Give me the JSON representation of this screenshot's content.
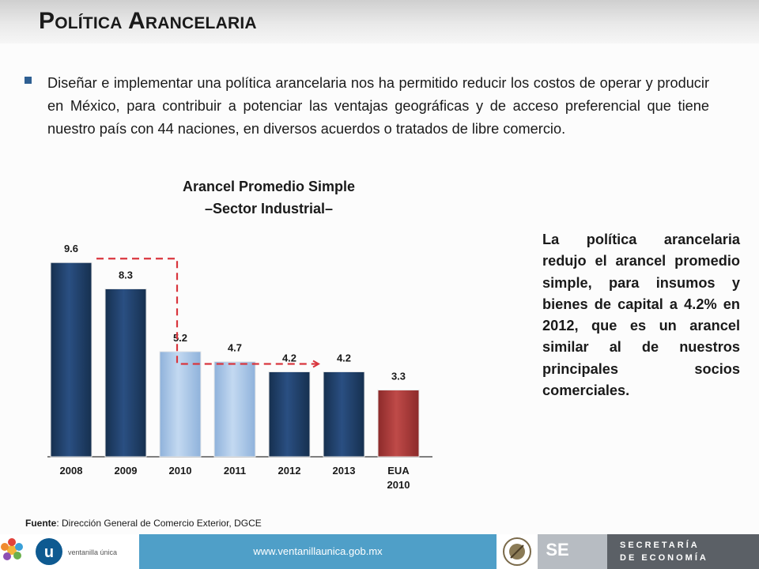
{
  "header": {
    "title": "Política Arancelaria"
  },
  "intro": {
    "text": "Diseñar e implementar una política arancelaria nos ha permitido reducir los costos de operar y producir en México, para contribuir a potenciar las ventajas geográficas y de acceso preferencial que tiene nuestro país con 44 naciones, en diversos acuerdos o tratados de libre comercio."
  },
  "chart_data": {
    "type": "bar",
    "title": "Arancel Promedio Simple",
    "subtitle": "–Sector Industrial–",
    "categories": [
      "2008",
      "2009",
      "2010",
      "2011",
      "2012",
      "2013",
      "EUA 2010"
    ],
    "values": [
      9.6,
      8.3,
      5.2,
      4.7,
      4.2,
      4.2,
      3.3
    ],
    "value_labels": [
      "9.6",
      "8.3",
      "5.2",
      "4.7",
      "4.2",
      "4.2",
      "3.3"
    ],
    "bar_colors": [
      "#1f3c66",
      "#1f3c66",
      "#a9c6e8",
      "#a9c6e8",
      "#1f3c66",
      "#1f3c66",
      "#a33a3a"
    ],
    "ylim": [
      0,
      10
    ],
    "grid": false,
    "legend": "none",
    "annotation": "dashed red step arrow from 2008 level down to 2012 level"
  },
  "side_note": {
    "text": "La política arancelaria redujo el arancel promedio simple, para insumos y bienes de capital a 4.2% en 2012, que es un arancel similar al de nuestros principales socios comerciales."
  },
  "source": {
    "label": "Fuente",
    "text": ": Dirección General de Comercio Exterior, DGCE"
  },
  "footer": {
    "url": "www.ventanillaunica.gob.mx",
    "brand_small": "ventanilla única",
    "se": "SE",
    "secretaria_line1": "SECRETARÍA",
    "secretaria_line2": "DE ECONOMÍA"
  },
  "colors": {
    "dark_bar": "#1f3c66",
    "light_bar": "#a9c6e8",
    "red_bar": "#a33a3a",
    "arrow": "#d9363e",
    "footer_blue": "#4f9fc8"
  }
}
